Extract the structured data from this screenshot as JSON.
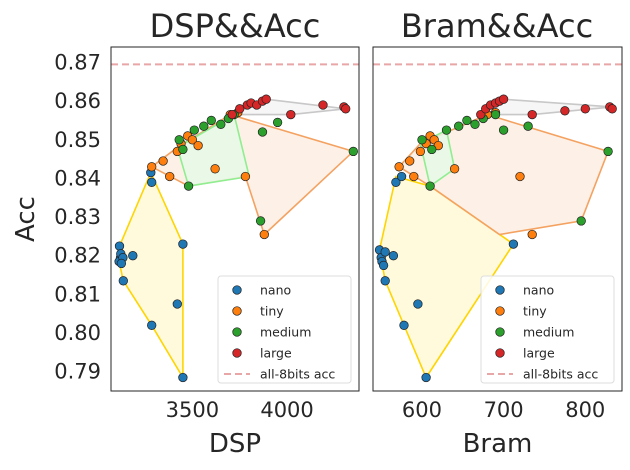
{
  "chart_data": [
    {
      "type": "scatter",
      "title": "DSP&&Acc",
      "xlabel": "DSP",
      "ylabel": "Acc",
      "xlim": [
        3070,
        4380
      ],
      "ylim": [
        0.785,
        0.874
      ],
      "xticks": [
        3500,
        4000
      ],
      "yticks": [
        0.79,
        0.8,
        0.81,
        0.82,
        0.83,
        0.84,
        0.85,
        0.86,
        0.87
      ],
      "baseline": {
        "name": "all-8bits acc",
        "value": 0.8695,
        "color": "#e8a7a6"
      },
      "legend_position": "lower-right",
      "series": [
        {
          "name": "nano",
          "color": "#1f77b4",
          "hull_line": "#ffd400",
          "hull_fill": "#fff9d6",
          "points": [
            [
              3115,
              0.8225
            ],
            [
              3120,
              0.8195
            ],
            [
              3113,
              0.8185
            ],
            [
              3122,
              0.8205
            ],
            [
              3133,
              0.8195
            ],
            [
              3125,
              0.818
            ],
            [
              3135,
              0.8135
            ],
            [
              3185,
              0.82
            ],
            [
              3280,
              0.8415
            ],
            [
              3285,
              0.839
            ],
            [
              3285,
              0.802
            ],
            [
              3420,
              0.8075
            ],
            [
              3450,
              0.823
            ],
            [
              3450,
              0.7885
            ]
          ],
          "hull": [
            [
              3113,
              0.8185
            ],
            [
              3115,
              0.8225
            ],
            [
              3280,
              0.8415
            ],
            [
              3450,
              0.823
            ],
            [
              3450,
              0.7885
            ],
            [
              3285,
              0.802
            ],
            [
              3135,
              0.8135
            ]
          ]
        },
        {
          "name": "tiny",
          "color": "#ff7f0e",
          "hull_line": "#f4a261",
          "hull_fill": "#fdeee3",
          "points": [
            [
              3285,
              0.843
            ],
            [
              3345,
              0.8445
            ],
            [
              3380,
              0.8405
            ],
            [
              3420,
              0.847
            ],
            [
              3440,
              0.849
            ],
            [
              3475,
              0.851
            ],
            [
              3500,
              0.85
            ],
            [
              3530,
              0.8485
            ],
            [
              3620,
              0.8425
            ],
            [
              3700,
              0.8565
            ],
            [
              3740,
              0.857
            ],
            [
              3780,
              0.8405
            ],
            [
              3880,
              0.8255
            ]
          ],
          "hull": [
            [
              3285,
              0.843
            ],
            [
              3420,
              0.848
            ],
            [
              3700,
              0.8565
            ],
            [
              4350,
              0.847
            ],
            [
              3880,
              0.8255
            ],
            [
              3780,
              0.8405
            ],
            [
              3480,
              0.838
            ]
          ]
        },
        {
          "name": "medium",
          "color": "#2ca02c",
          "hull_line": "#90ee90",
          "hull_fill": "#e6f9e6",
          "points": [
            [
              3430,
              0.85
            ],
            [
              3450,
              0.8475
            ],
            [
              3480,
              0.838
            ],
            [
              3510,
              0.8525
            ],
            [
              3560,
              0.8535
            ],
            [
              3600,
              0.855
            ],
            [
              3650,
              0.854
            ],
            [
              3690,
              0.8555
            ],
            [
              3720,
              0.8565
            ],
            [
              3860,
              0.829
            ],
            [
              3870,
              0.852
            ],
            [
              3950,
              0.8545
            ],
            [
              4350,
              0.847
            ]
          ],
          "hull": [
            [
              3420,
              0.848
            ],
            [
              3720,
              0.8565
            ],
            [
              3800,
              0.8405
            ],
            [
              3480,
              0.838
            ]
          ]
        },
        {
          "name": "large",
          "color": "#d62728",
          "hull_line": "#c8c8c8",
          "hull_fill": "#f4f4f4",
          "points": [
            [
              3710,
              0.8565
            ],
            [
              3750,
              0.858
            ],
            [
              3790,
              0.859
            ],
            [
              3810,
              0.8595
            ],
            [
              3840,
              0.859
            ],
            [
              3870,
              0.86
            ],
            [
              3890,
              0.8605
            ],
            [
              4020,
              0.8565
            ],
            [
              4190,
              0.859
            ],
            [
              4300,
              0.8585
            ],
            [
              4310,
              0.858
            ]
          ],
          "hull": [
            [
              3710,
              0.8565
            ],
            [
              3890,
              0.8605
            ],
            [
              4310,
              0.858
            ],
            [
              4020,
              0.8565
            ]
          ]
        }
      ]
    },
    {
      "type": "scatter",
      "title": "Bram&&Acc",
      "xlabel": "Bram",
      "ylabel": "",
      "xlim": [
        540,
        845
      ],
      "ylim": [
        0.785,
        0.874
      ],
      "xticks": [
        600,
        700,
        800
      ],
      "yticks": [],
      "baseline": {
        "name": "all-8bits acc",
        "value": 0.8695,
        "color": "#e8a7a6"
      },
      "legend_position": "lower-right",
      "series": [
        {
          "name": "nano",
          "color": "#1f77b4",
          "hull_line": "#ffd400",
          "hull_fill": "#fff9d6",
          "points": [
            [
              548,
              0.8215
            ],
            [
              550,
              0.8195
            ],
            [
              551,
              0.8185
            ],
            [
              553,
              0.8175
            ],
            [
              555,
              0.8135
            ],
            [
              555,
              0.821
            ],
            [
              565,
              0.82
            ],
            [
              568,
              0.839
            ],
            [
              575,
              0.8405
            ],
            [
              578,
              0.802
            ],
            [
              595,
              0.8075
            ],
            [
              605,
              0.7885
            ],
            [
              712,
              0.823
            ]
          ],
          "hull": [
            [
              548,
              0.8215
            ],
            [
              568,
              0.8405
            ],
            [
              610,
              0.838
            ],
            [
              712,
              0.823
            ],
            [
              605,
              0.7885
            ],
            [
              555,
              0.8135
            ]
          ]
        },
        {
          "name": "tiny",
          "color": "#ff7f0e",
          "hull_line": "#f4a261",
          "hull_fill": "#fdeee3",
          "points": [
            [
              572,
              0.843
            ],
            [
              585,
              0.8445
            ],
            [
              590,
              0.8405
            ],
            [
              598,
              0.847
            ],
            [
              605,
              0.849
            ],
            [
              610,
              0.851
            ],
            [
              615,
              0.85
            ],
            [
              620,
              0.8485
            ],
            [
              640,
              0.8425
            ],
            [
              680,
              0.8565
            ],
            [
              690,
              0.857
            ],
            [
              720,
              0.8405
            ],
            [
              735,
              0.8255
            ]
          ],
          "hull": [
            [
              572,
              0.843
            ],
            [
              598,
              0.849
            ],
            [
              680,
              0.8565
            ],
            [
              828,
              0.847
            ],
            [
              795,
              0.829
            ],
            [
              695,
              0.8255
            ],
            [
              610,
              0.838
            ]
          ]
        },
        {
          "name": "medium",
          "color": "#2ca02c",
          "hull_line": "#90ee90",
          "hull_fill": "#e6f9e6",
          "points": [
            [
              600,
              0.85
            ],
            [
              610,
              0.838
            ],
            [
              612,
              0.8475
            ],
            [
              630,
              0.8525
            ],
            [
              645,
              0.8535
            ],
            [
              655,
              0.855
            ],
            [
              665,
              0.854
            ],
            [
              675,
              0.8555
            ],
            [
              690,
              0.8565
            ],
            [
              700,
              0.8525
            ],
            [
              730,
              0.8535
            ],
            [
              795,
              0.829
            ],
            [
              828,
              0.847
            ]
          ],
          "hull": [
            [
              598,
              0.849
            ],
            [
              630,
              0.8525
            ],
            [
              640,
              0.8425
            ],
            [
              610,
              0.838
            ]
          ]
        },
        {
          "name": "large",
          "color": "#d62728",
          "hull_line": "#c8c8c8",
          "hull_fill": "#f4f4f4",
          "points": [
            [
              672,
              0.8565
            ],
            [
              678,
              0.858
            ],
            [
              684,
              0.859
            ],
            [
              690,
              0.8595
            ],
            [
              695,
              0.86
            ],
            [
              700,
              0.8605
            ],
            [
              735,
              0.8565
            ],
            [
              775,
              0.8575
            ],
            [
              800,
              0.858
            ],
            [
              830,
              0.8585
            ],
            [
              833,
              0.858
            ]
          ],
          "hull": [
            [
              672,
              0.8565
            ],
            [
              700,
              0.8605
            ],
            [
              833,
              0.8585
            ],
            [
              735,
              0.8565
            ]
          ]
        }
      ]
    }
  ]
}
